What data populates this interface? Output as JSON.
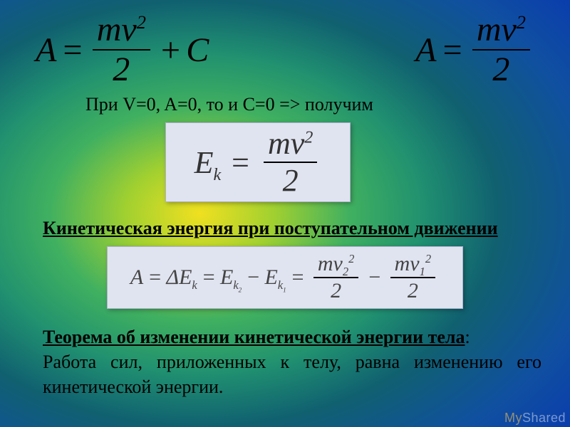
{
  "colors": {
    "gradient_center": "#f0e020",
    "gradient_mid1": "#40b060",
    "gradient_mid2": "#106070",
    "gradient_edge": "#0838b0",
    "box_bg": "#e0e4f0",
    "box_border": "#b0b0d0",
    "text": "#000000",
    "box_text": "#333333"
  },
  "typography": {
    "family": "Times New Roman",
    "big_formula_size_pt": 36,
    "body_size_pt": 20,
    "heading_size_pt": 20
  },
  "top_left_formula": {
    "lhs": "A",
    "eq": "=",
    "num": "mv",
    "num_sup": "2",
    "den": "2",
    "plus": "+",
    "tail": "C"
  },
  "top_right_formula": {
    "lhs": "A",
    "eq": "=",
    "num": "mv",
    "num_sup": "2",
    "den": "2"
  },
  "condition_line": "При V=0, A=0, то и С=0 => получим",
  "box1_formula": {
    "lhs": "E",
    "lhs_sub": "k",
    "eq": "=",
    "num": "mv",
    "num_sup": "2",
    "den": "2"
  },
  "heading1": "Кинетическая энергия при поступательном движении",
  "box2_formula": {
    "A": "A",
    "eq": "=",
    "dEk": "ΔE",
    "dEk_sub": "k",
    "Ek2": "E",
    "Ek2_sub": "k",
    "Ek2_sub2": "2",
    "minus": "−",
    "Ek1": "E",
    "Ek1_sub": "k",
    "Ek1_sub2": "1",
    "num2": "mv",
    "num2_sub": "2",
    "num2_sup": "2",
    "num1": "mv",
    "num1_sub": "1",
    "num1_sup": "2",
    "den": "2"
  },
  "theorem": {
    "title": "Теорема об изменении кинетической энергии тела",
    "colon": ":",
    "body": "Работа сил, приложенных к телу, равна изменению его кинетической энергии."
  },
  "watermark": {
    "my": "My",
    "shared": "Shared"
  }
}
